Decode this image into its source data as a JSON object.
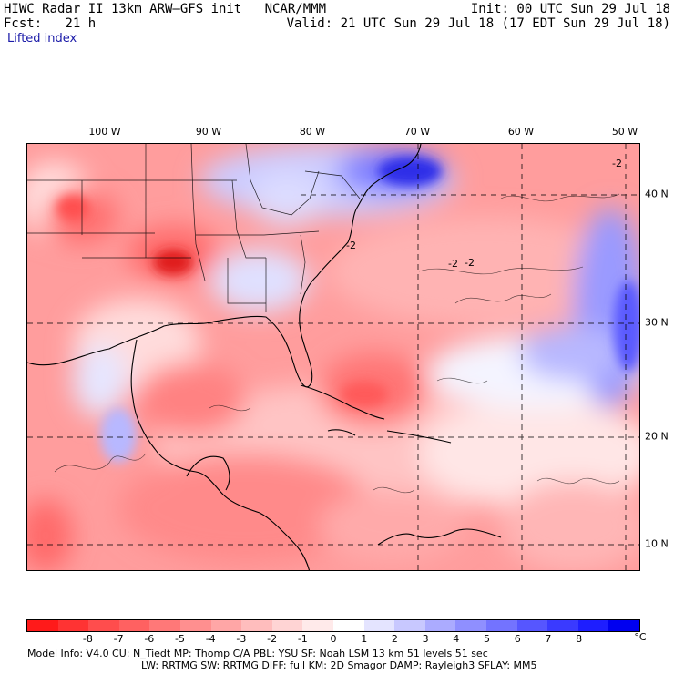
{
  "header": {
    "line1_left": "HIWC Radar II 13km ARW–GFS init   NCAR/MMM",
    "line1_right": "Init: 00 UTC Sun 29 Jul 18",
    "line2_left": "Fcst:   21 h",
    "line2_right": "Valid: 21 UTC Sun 29 Jul 18 (17 EDT Sun 29 Jul 18)",
    "variable": "Lifted index"
  },
  "map": {
    "lon_labels": [
      "100 W",
      "90 W",
      "80 W",
      "70 W",
      "60 W",
      "50 W"
    ],
    "lat_labels": [
      "40 N",
      "30 N",
      "20 N",
      "10 N"
    ],
    "contour_labels": [
      "-2",
      "-2",
      "-2",
      "-2"
    ]
  },
  "colorbar": {
    "ticks": [
      "-8",
      "-7",
      "-6",
      "-5",
      "-4",
      "-3",
      "-2",
      "-1",
      "0",
      "1",
      "2",
      "3",
      "4",
      "5",
      "6",
      "7",
      "8"
    ],
    "unit": "°C",
    "colors": [
      "#ff1a1a",
      "#ff3333",
      "#ff4d4d",
      "#ff6161",
      "#ff7878",
      "#ff8f8f",
      "#ffa6a6",
      "#ffbdbd",
      "#ffd4d4",
      "#ffeaea",
      "#ffffff",
      "#e4e4ff",
      "#c8c8ff",
      "#ababff",
      "#8f8fff",
      "#7373ff",
      "#5656ff",
      "#3a3aff",
      "#1e1eff",
      "#0000f0"
    ]
  },
  "footer": {
    "line1": "Model Info: V4.0     CU: N_Tiedt  MP: Thomp C/A    PBL: YSU       SF: Noah LSM     13 km    51 levels   51 sec",
    "line2": "LW: RRTMG    SW: RRTMG  DIFF: full    KM: 2D Smagor DAMP: Rayleigh3  SFLAY: MM5"
  }
}
